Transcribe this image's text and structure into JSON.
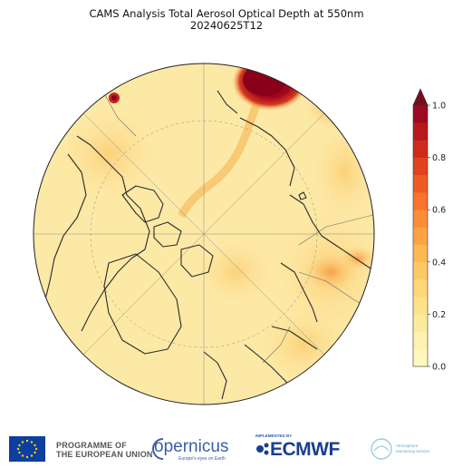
{
  "header": {
    "title": "CAMS Analysis Total Aerosol Optical Depth at 550nm",
    "date": "20240625T12"
  },
  "colorbar": {
    "ticks": [
      "0.0",
      "0.2",
      "0.4",
      "0.6",
      "0.8",
      "1.0"
    ],
    "tick_values": [
      0.0,
      0.2,
      0.4,
      0.6,
      0.8,
      1.0
    ],
    "min": 0.0,
    "max": 1.0,
    "colors": [
      "#fff7bd",
      "#fff1ae",
      "#feea9c",
      "#fee28a",
      "#fed679",
      "#fdc866",
      "#fdb853",
      "#fca444",
      "#fb8c39",
      "#f7732e",
      "#ee5a25",
      "#e1421e",
      "#cf2b1b",
      "#b8171c",
      "#9c0a22"
    ]
  },
  "map": {
    "projection": "north-polar-stereographic",
    "background_color": "#fde9a6",
    "hotspot_color": "#8b0019"
  },
  "footer": {
    "eu_label_line1": "PROGRAMME OF",
    "eu_label_line2": "THE EUROPEAN UNION",
    "copernicus": "opernicus",
    "copernicus_sub": "Europe's eyes on Earth",
    "implemented_by": "IMPLEMENTED BY",
    "ecmwf": "ECMWF",
    "cams_line1": "Atmosphere",
    "cams_line2": "Monitoring Service"
  }
}
